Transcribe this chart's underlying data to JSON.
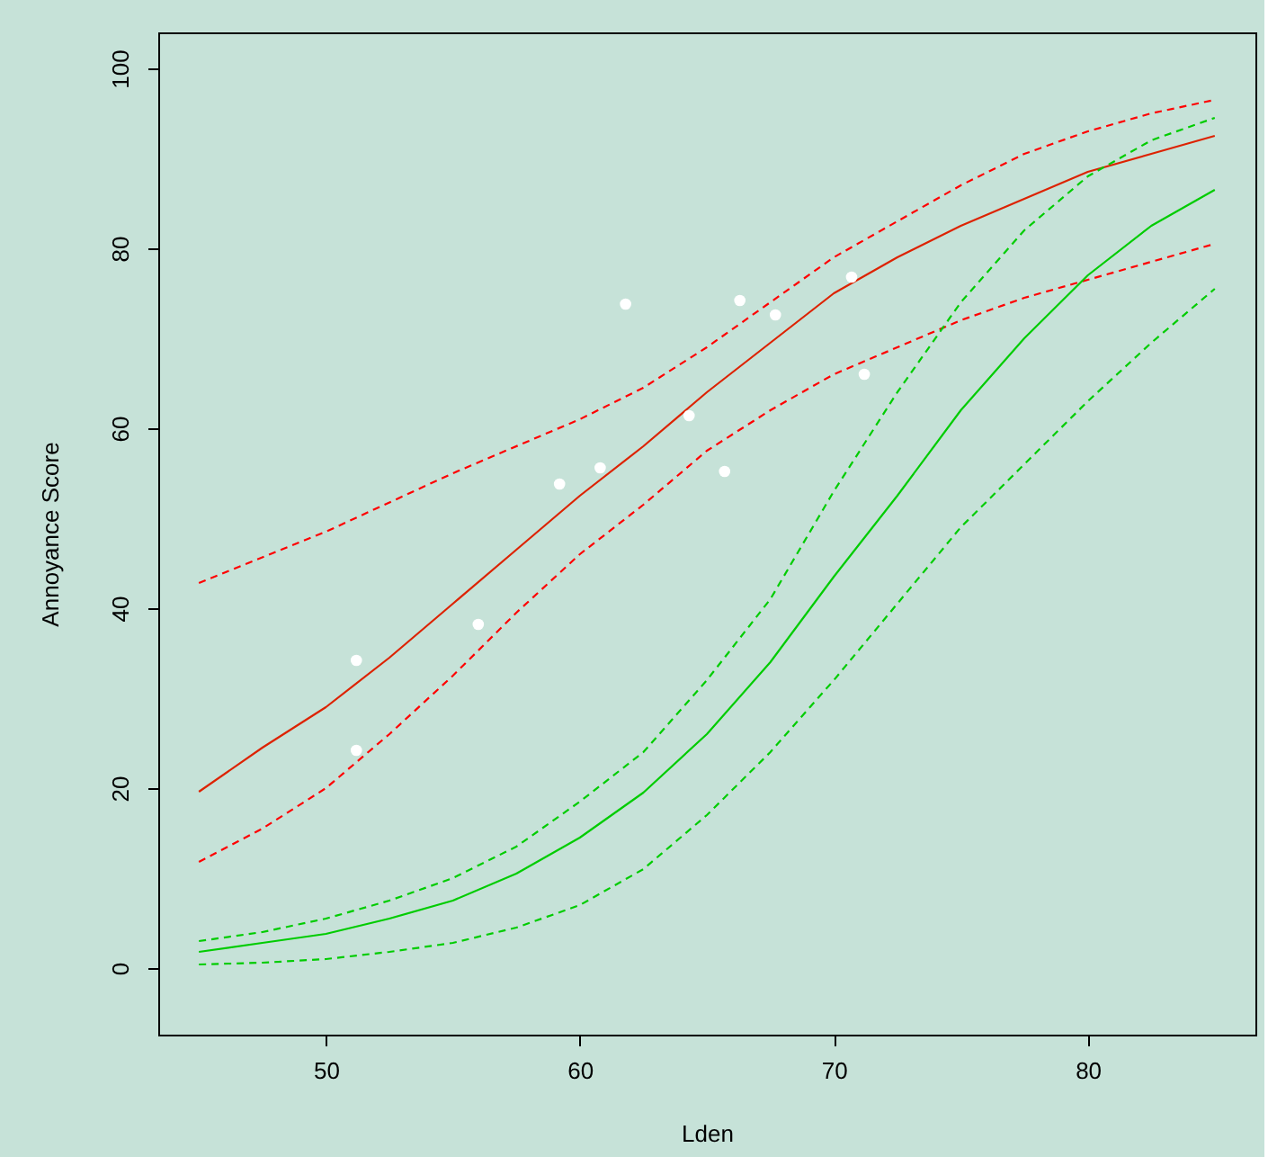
{
  "chart_data": {
    "type": "line",
    "xlabel": "Lden",
    "ylabel": "Annoyance Score",
    "xlim": [
      43.4,
      86.6
    ],
    "ylim": [
      -7.4,
      104
    ],
    "xticks": [
      50,
      60,
      70,
      80
    ],
    "yticks": [
      0,
      20,
      40,
      60,
      80,
      100
    ],
    "grid": false,
    "series": [
      {
        "color": "#dd2200",
        "line_style": "solid",
        "marker": "none",
        "x": [
          45,
          47.5,
          50,
          52.5,
          55,
          57.5,
          60,
          62.5,
          65,
          67.5,
          70,
          72.5,
          75,
          77.5,
          80,
          82.5,
          85
        ],
        "values": [
          19.6,
          24.5,
          29,
          34.5,
          40.5,
          46.5,
          52.5,
          58,
          64,
          69.5,
          75,
          79,
          82.5,
          85.5,
          88.5,
          90.5,
          92.5
        ]
      },
      {
        "color": "#ff0000",
        "line_style": "dashed",
        "marker": "none",
        "x": [
          45,
          50,
          55,
          60,
          62.5,
          65,
          67.5,
          70,
          72.5,
          75,
          77.5,
          80,
          82.5,
          85
        ],
        "values": [
          42.8,
          48.5,
          55,
          61,
          64.5,
          69,
          74,
          79,
          83,
          87,
          90.5,
          93,
          95,
          96.5
        ]
      },
      {
        "color": "#ff0000",
        "line_style": "dashed",
        "marker": "none",
        "x": [
          45,
          47.5,
          50,
          52.5,
          55,
          57.5,
          60,
          62.5,
          65,
          67.5,
          70,
          72.5,
          75,
          77.5,
          80,
          82.5,
          85
        ],
        "values": [
          11.8,
          15.5,
          20,
          26,
          32.5,
          39.5,
          46,
          51.5,
          57.5,
          62,
          66,
          69,
          72,
          74.5,
          76.5,
          78.5,
          80.5
        ]
      },
      {
        "color": "#00cc00",
        "line_style": "solid",
        "marker": "none",
        "x": [
          45,
          47.5,
          50,
          52.5,
          55,
          57.5,
          60,
          62.5,
          65,
          67.5,
          70,
          72.5,
          75,
          77.5,
          80,
          82.5,
          85
        ],
        "values": [
          1.8,
          2.8,
          3.8,
          5.5,
          7.5,
          10.5,
          14.5,
          19.5,
          26,
          34,
          43.5,
          52.5,
          62,
          70,
          77,
          82.5,
          86.5
        ]
      },
      {
        "color": "#00cc00",
        "line_style": "dashed",
        "marker": "none",
        "x": [
          45,
          47.5,
          50,
          52.5,
          55,
          57.5,
          60,
          62.5,
          65,
          67.5,
          70,
          72.5,
          75,
          77.5,
          80,
          82.5,
          85
        ],
        "values": [
          3,
          4,
          5.5,
          7.5,
          10,
          13.5,
          18.5,
          24,
          32,
          41,
          53,
          64,
          74,
          82,
          88,
          92,
          94.5
        ]
      },
      {
        "color": "#00cc00",
        "line_style": "dashed",
        "marker": "none",
        "x": [
          45,
          47.5,
          50,
          52.5,
          55,
          57.5,
          60,
          62.5,
          65,
          67.5,
          70,
          72.5,
          75,
          77.5,
          80,
          82.5,
          85
        ],
        "values": [
          0.4,
          0.6,
          1,
          1.8,
          2.8,
          4.5,
          7,
          11,
          17,
          24,
          32,
          40.5,
          49,
          56,
          63,
          69.5,
          75.5
        ]
      },
      {
        "type": "scatter",
        "color": "#ffffff",
        "marker": "circle",
        "x": [
          51.2,
          51.2,
          56.0,
          59.2,
          60.8,
          61.8,
          64.3,
          65.7,
          66.3,
          67.7,
          70.7,
          71.2
        ],
        "values": [
          34.2,
          24.2,
          38.2,
          53.8,
          55.6,
          73.8,
          61.4,
          55.2,
          74.2,
          72.6,
          76.8,
          66
        ]
      }
    ]
  }
}
